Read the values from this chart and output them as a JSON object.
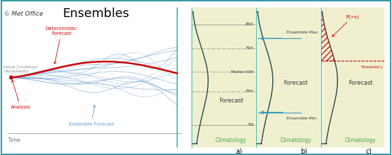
{
  "title": "Ensembles",
  "background_color": "#ffffff",
  "panel_bg_color": "#f0f0d0",
  "fig_border_color": "#3399aa",
  "label_a": "a)",
  "label_b": "b)",
  "label_c": "c)",
  "climatology_text": "Climatology",
  "forecast_text": "Forecast",
  "time_text": "Time",
  "det_forecast_label": "Deterministic\nForecast",
  "ensemble_forecast_label": "Ensemble Forecast",
  "analysis_label": "Analysis",
  "init_cond_label": "Initial Condition\nUncertainty",
  "percentile_95": "95th",
  "percentile_75": "75th",
  "percentile_50": "Median 50th",
  "percentile_25": "25th",
  "percentile_5": "5th",
  "ensemble_max_label": "Ensemble Max",
  "ensemble_min_label": "Ensemble Min",
  "prob_label": "P(>x)",
  "threshold_label": "Threshold x",
  "det_color": "#cc0000",
  "ensemble_color": "#6699cc",
  "ensemble_color_light": "#99bbdd",
  "arrow_color": "#3399bb",
  "red_hatch_color": "#cc0000",
  "green_text_color": "#44aa44",
  "cyan_line_color": "#33bbaa",
  "gray_line_color": "#aaaaaa",
  "dark_line_color": "#224444",
  "dashed_line_color": "#555555",
  "metoffice_symbol": "♲",
  "n_ensemble": 15,
  "start_x": 0.5,
  "start_y": 5.0,
  "xlim": [
    0,
    10
  ],
  "ylim": [
    0,
    10
  ]
}
